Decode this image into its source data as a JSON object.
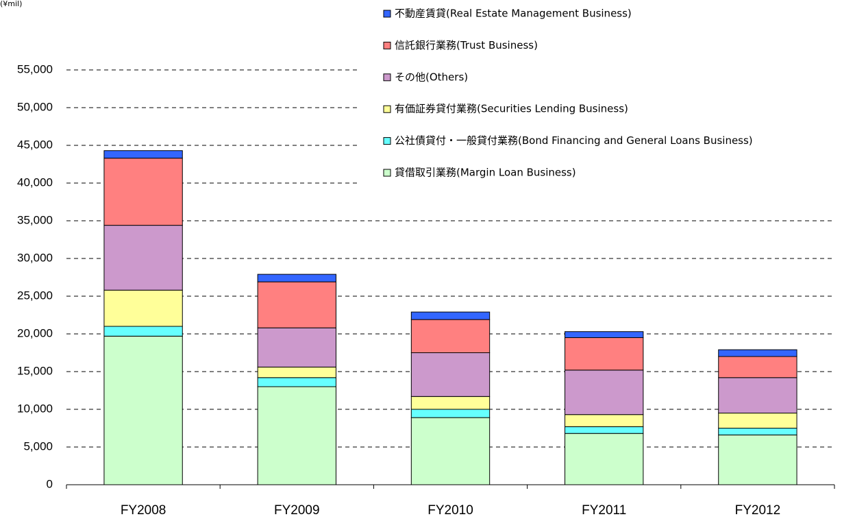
{
  "chart_data": {
    "type": "stacked_bar",
    "unit_label": "(¥mil)",
    "categories": [
      "FY2008",
      "FY2009",
      "FY2010",
      "FY2011",
      "FY2012"
    ],
    "series": [
      {
        "name": "貸借取引業務(Margin Loan Business)",
        "color": "#ccffcc",
        "values": [
          19700,
          13000,
          8900,
          6800,
          6600
        ]
      },
      {
        "name": "公社債貸付・一般貸付業務(Bond Financing and General Loans Business)",
        "color": "#66ffff",
        "values": [
          1300,
          1200,
          1100,
          900,
          900
        ]
      },
      {
        "name": "有価証券貸付業務(Securities Lending Business)",
        "color": "#ffff99",
        "values": [
          4800,
          1400,
          1700,
          1600,
          2000
        ]
      },
      {
        "name": "その他(Others)",
        "color": "#cc99cc",
        "values": [
          8600,
          5200,
          5800,
          5900,
          4700
        ]
      },
      {
        "name": "信託銀行業務(Trust Business)",
        "color": "#ff8080",
        "values": [
          8900,
          6100,
          4400,
          4300,
          2800
        ]
      },
      {
        "name": "不動産賃貸(Real Estate Management Business)",
        "color": "#3366ff",
        "values": [
          1000,
          1000,
          1000,
          800,
          900
        ]
      }
    ],
    "ylim": [
      0,
      55000
    ],
    "yticks": [
      0,
      {
        "value": 5000,
        "label": "5,000"
      },
      {
        "value": 10000,
        "label": "10,000"
      },
      {
        "value": 15000,
        "label": "15,000"
      },
      {
        "value": 20000,
        "label": "20,000"
      },
      {
        "value": 25000,
        "label": "25,000"
      },
      {
        "value": 30000,
        "label": "30,000"
      },
      {
        "value": 35000,
        "label": "35,000"
      },
      {
        "value": 40000,
        "label": "40,000"
      },
      {
        "value": 45000,
        "label": "45,000"
      },
      {
        "value": 50000,
        "label": "50,000"
      },
      {
        "value": 55000,
        "label": "55,000"
      }
    ],
    "grid": true,
    "legend": "top-right"
  }
}
